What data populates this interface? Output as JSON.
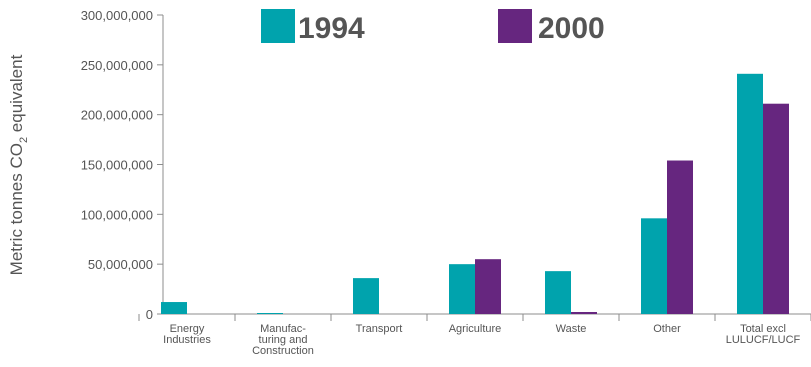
{
  "chart_data": {
    "type": "bar",
    "ylabel": "Metric tonnes CO",
    "ylabel_sub": "2",
    "ylabel_tail": " equivalent",
    "categories": [
      [
        "Energy",
        "Industries"
      ],
      [
        "Manufac-",
        "turing and",
        "Construction"
      ],
      [
        "Transport"
      ],
      [
        "Agriculture"
      ],
      [
        "Waste"
      ],
      [
        "Other"
      ],
      [
        "Total excl",
        "LULUCF/LUCF"
      ]
    ],
    "series": [
      {
        "name": "1994",
        "color": "#00a3ad",
        "values": [
          12000000,
          1000000,
          36000000,
          50000000,
          43000000,
          96000000,
          241000000
        ]
      },
      {
        "name": "2000",
        "color": "#66267f",
        "values": [
          0,
          0,
          0,
          55000000,
          2000000,
          154000000,
          211000000
        ]
      }
    ],
    "ylim": [
      0,
      300000000
    ],
    "yticks": [
      "0",
      "50,000,000",
      "100,000,000",
      "150,000,000",
      "200,000,000",
      "250,000,000",
      "300,000,000"
    ],
    "legend_position": "top",
    "grid": false
  }
}
